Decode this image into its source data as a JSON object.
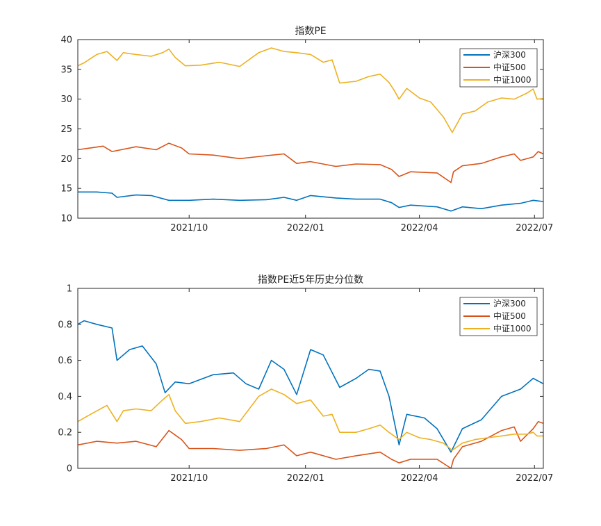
{
  "chart_data": [
    {
      "type": "line",
      "title": "指数PE",
      "xlabel": "",
      "ylabel": "",
      "xlim": [
        "2021-07-05",
        "2022-07-08"
      ],
      "ylim": [
        10,
        40
      ],
      "xticks": [
        {
          "date": "2021-10-01",
          "label": "2021/10"
        },
        {
          "date": "2022-01-01",
          "label": "2022/01"
        },
        {
          "date": "2022-04-01",
          "label": "2022/04"
        },
        {
          "date": "2022-07-01",
          "label": "2022/07"
        }
      ],
      "yticks": [
        {
          "value": 10,
          "label": "10"
        },
        {
          "value": 15,
          "label": "15"
        },
        {
          "value": 20,
          "label": "20"
        },
        {
          "value": 25,
          "label": "25"
        },
        {
          "value": 30,
          "label": "30"
        },
        {
          "value": 35,
          "label": "35"
        },
        {
          "value": 40,
          "label": "40"
        }
      ],
      "grid": false,
      "legend_position": "top-right",
      "series": [
        {
          "name": "沪深300",
          "color": "#0072BD",
          "points": [
            [
              "2021-07-05",
              14.4
            ],
            [
              "2021-07-20",
              14.4
            ],
            [
              "2021-08-01",
              14.2
            ],
            [
              "2021-08-05",
              13.5
            ],
            [
              "2021-08-20",
              13.9
            ],
            [
              "2021-09-01",
              13.8
            ],
            [
              "2021-09-15",
              13.0
            ],
            [
              "2021-10-01",
              13.0
            ],
            [
              "2021-10-20",
              13.2
            ],
            [
              "2021-11-10",
              13.0
            ],
            [
              "2021-12-01",
              13.1
            ],
            [
              "2021-12-15",
              13.5
            ],
            [
              "2021-12-25",
              13.0
            ],
            [
              "2022-01-05",
              13.8
            ],
            [
              "2022-01-25",
              13.4
            ],
            [
              "2022-02-10",
              13.2
            ],
            [
              "2022-03-01",
              13.2
            ],
            [
              "2022-03-10",
              12.6
            ],
            [
              "2022-03-16",
              11.8
            ],
            [
              "2022-03-25",
              12.2
            ],
            [
              "2022-04-15",
              11.9
            ],
            [
              "2022-04-26",
              11.2
            ],
            [
              "2022-05-05",
              11.9
            ],
            [
              "2022-05-20",
              11.6
            ],
            [
              "2022-06-05",
              12.2
            ],
            [
              "2022-06-20",
              12.5
            ],
            [
              "2022-06-30",
              13.0
            ],
            [
              "2022-07-08",
              12.8
            ]
          ]
        },
        {
          "name": "中证500",
          "color": "#D95319",
          "points": [
            [
              "2021-07-05",
              21.5
            ],
            [
              "2021-07-15",
              21.8
            ],
            [
              "2021-07-25",
              22.1
            ],
            [
              "2021-08-01",
              21.2
            ],
            [
              "2021-08-20",
              22.0
            ],
            [
              "2021-09-05",
              21.5
            ],
            [
              "2021-09-15",
              22.6
            ],
            [
              "2021-09-25",
              21.8
            ],
            [
              "2021-10-01",
              20.8
            ],
            [
              "2021-10-20",
              20.6
            ],
            [
              "2021-11-10",
              20.0
            ],
            [
              "2021-12-01",
              20.5
            ],
            [
              "2021-12-15",
              20.8
            ],
            [
              "2021-12-25",
              19.2
            ],
            [
              "2022-01-05",
              19.5
            ],
            [
              "2022-01-25",
              18.7
            ],
            [
              "2022-02-10",
              19.1
            ],
            [
              "2022-03-01",
              19.0
            ],
            [
              "2022-03-10",
              18.2
            ],
            [
              "2022-03-16",
              17.0
            ],
            [
              "2022-03-25",
              17.8
            ],
            [
              "2022-04-15",
              17.6
            ],
            [
              "2022-04-26",
              16.0
            ],
            [
              "2022-04-28",
              17.8
            ],
            [
              "2022-05-05",
              18.8
            ],
            [
              "2022-05-20",
              19.2
            ],
            [
              "2022-06-05",
              20.3
            ],
            [
              "2022-06-15",
              20.8
            ],
            [
              "2022-06-20",
              19.7
            ],
            [
              "2022-06-30",
              20.3
            ],
            [
              "2022-07-04",
              21.2
            ],
            [
              "2022-07-08",
              20.8
            ]
          ]
        },
        {
          "name": "中证1000",
          "color": "#EDB120",
          "points": [
            [
              "2021-07-05",
              35.6
            ],
            [
              "2021-07-10",
              36.1
            ],
            [
              "2021-07-20",
              37.5
            ],
            [
              "2021-07-28",
              38.0
            ],
            [
              "2021-08-05",
              36.5
            ],
            [
              "2021-08-10",
              37.8
            ],
            [
              "2021-08-20",
              37.5
            ],
            [
              "2021-09-01",
              37.2
            ],
            [
              "2021-09-10",
              37.8
            ],
            [
              "2021-09-15",
              38.4
            ],
            [
              "2021-09-20",
              37.0
            ],
            [
              "2021-09-28",
              35.6
            ],
            [
              "2021-10-10",
              35.7
            ],
            [
              "2021-10-25",
              36.2
            ],
            [
              "2021-11-10",
              35.5
            ],
            [
              "2021-11-25",
              37.8
            ],
            [
              "2021-12-05",
              38.6
            ],
            [
              "2021-12-15",
              38.0
            ],
            [
              "2021-12-25",
              37.8
            ],
            [
              "2022-01-05",
              37.5
            ],
            [
              "2022-01-15",
              36.2
            ],
            [
              "2022-01-22",
              36.6
            ],
            [
              "2022-01-28",
              32.7
            ],
            [
              "2022-02-10",
              33.0
            ],
            [
              "2022-02-20",
              33.8
            ],
            [
              "2022-03-01",
              34.2
            ],
            [
              "2022-03-08",
              32.8
            ],
            [
              "2022-03-12",
              31.5
            ],
            [
              "2022-03-16",
              30.0
            ],
            [
              "2022-03-22",
              31.8
            ],
            [
              "2022-04-01",
              30.2
            ],
            [
              "2022-04-10",
              29.5
            ],
            [
              "2022-04-20",
              27.0
            ],
            [
              "2022-04-27",
              24.4
            ],
            [
              "2022-05-05",
              27.5
            ],
            [
              "2022-05-15",
              28.0
            ],
            [
              "2022-05-25",
              29.5
            ],
            [
              "2022-06-05",
              30.2
            ],
            [
              "2022-06-15",
              30.0
            ],
            [
              "2022-06-25",
              31.0
            ],
            [
              "2022-06-30",
              31.7
            ],
            [
              "2022-07-03",
              30.0
            ],
            [
              "2022-07-08",
              30.1
            ]
          ]
        }
      ]
    },
    {
      "type": "line",
      "title": "指数PE近5年历史分位数",
      "xlabel": "",
      "ylabel": "",
      "xlim": [
        "2021-07-05",
        "2022-07-08"
      ],
      "ylim": [
        0,
        1
      ],
      "xticks": [
        {
          "date": "2021-10-01",
          "label": "2021/10"
        },
        {
          "date": "2022-01-01",
          "label": "2022/01"
        },
        {
          "date": "2022-04-01",
          "label": "2022/04"
        },
        {
          "date": "2022-07-01",
          "label": "2022/07"
        }
      ],
      "yticks": [
        {
          "value": 0,
          "label": "0"
        },
        {
          "value": 0.2,
          "label": "0.2"
        },
        {
          "value": 0.4,
          "label": "0.4"
        },
        {
          "value": 0.6,
          "label": "0.6"
        },
        {
          "value": 0.8,
          "label": "0.8"
        },
        {
          "value": 1,
          "label": "1"
        }
      ],
      "grid": false,
      "legend_position": "top-right",
      "series": [
        {
          "name": "沪深300",
          "color": "#0072BD",
          "points": [
            [
              "2021-07-05",
              0.8
            ],
            [
              "2021-07-10",
              0.82
            ],
            [
              "2021-07-20",
              0.8
            ],
            [
              "2021-08-01",
              0.78
            ],
            [
              "2021-08-05",
              0.6
            ],
            [
              "2021-08-15",
              0.66
            ],
            [
              "2021-08-25",
              0.68
            ],
            [
              "2021-09-05",
              0.58
            ],
            [
              "2021-09-12",
              0.42
            ],
            [
              "2021-09-20",
              0.48
            ],
            [
              "2021-10-01",
              0.47
            ],
            [
              "2021-10-20",
              0.52
            ],
            [
              "2021-11-05",
              0.53
            ],
            [
              "2021-11-15",
              0.47
            ],
            [
              "2021-11-25",
              0.44
            ],
            [
              "2021-12-05",
              0.6
            ],
            [
              "2021-12-15",
              0.55
            ],
            [
              "2021-12-25",
              0.41
            ],
            [
              "2022-01-05",
              0.66
            ],
            [
              "2022-01-15",
              0.63
            ],
            [
              "2022-01-28",
              0.45
            ],
            [
              "2022-02-10",
              0.5
            ],
            [
              "2022-02-20",
              0.55
            ],
            [
              "2022-03-01",
              0.54
            ],
            [
              "2022-03-08",
              0.4
            ],
            [
              "2022-03-16",
              0.13
            ],
            [
              "2022-03-22",
              0.3
            ],
            [
              "2022-04-05",
              0.28
            ],
            [
              "2022-04-15",
              0.22
            ],
            [
              "2022-04-26",
              0.09
            ],
            [
              "2022-05-05",
              0.22
            ],
            [
              "2022-05-20",
              0.27
            ],
            [
              "2022-06-05",
              0.4
            ],
            [
              "2022-06-20",
              0.44
            ],
            [
              "2022-06-30",
              0.5
            ],
            [
              "2022-07-08",
              0.47
            ]
          ]
        },
        {
          "name": "中证500",
          "color": "#D95319",
          "points": [
            [
              "2021-07-05",
              0.13
            ],
            [
              "2021-07-20",
              0.15
            ],
            [
              "2021-08-05",
              0.14
            ],
            [
              "2021-08-20",
              0.15
            ],
            [
              "2021-09-05",
              0.12
            ],
            [
              "2021-09-15",
              0.21
            ],
            [
              "2021-09-25",
              0.16
            ],
            [
              "2021-10-01",
              0.11
            ],
            [
              "2021-10-20",
              0.11
            ],
            [
              "2021-11-10",
              0.1
            ],
            [
              "2021-12-01",
              0.11
            ],
            [
              "2021-12-15",
              0.13
            ],
            [
              "2021-12-25",
              0.07
            ],
            [
              "2022-01-05",
              0.09
            ],
            [
              "2022-01-25",
              0.05
            ],
            [
              "2022-02-10",
              0.07
            ],
            [
              "2022-03-01",
              0.09
            ],
            [
              "2022-03-10",
              0.05
            ],
            [
              "2022-03-16",
              0.03
            ],
            [
              "2022-03-25",
              0.05
            ],
            [
              "2022-04-15",
              0.05
            ],
            [
              "2022-04-26",
              0.0
            ],
            [
              "2022-04-28",
              0.05
            ],
            [
              "2022-05-05",
              0.12
            ],
            [
              "2022-05-20",
              0.15
            ],
            [
              "2022-06-05",
              0.21
            ],
            [
              "2022-06-15",
              0.23
            ],
            [
              "2022-06-20",
              0.15
            ],
            [
              "2022-06-30",
              0.22
            ],
            [
              "2022-07-04",
              0.26
            ],
            [
              "2022-07-08",
              0.25
            ]
          ]
        },
        {
          "name": "中证1000",
          "color": "#EDB120",
          "points": [
            [
              "2021-07-05",
              0.26
            ],
            [
              "2021-07-15",
              0.3
            ],
            [
              "2021-07-28",
              0.35
            ],
            [
              "2021-08-05",
              0.26
            ],
            [
              "2021-08-10",
              0.32
            ],
            [
              "2021-08-20",
              0.33
            ],
            [
              "2021-09-01",
              0.32
            ],
            [
              "2021-09-10",
              0.38
            ],
            [
              "2021-09-15",
              0.41
            ],
            [
              "2021-09-20",
              0.32
            ],
            [
              "2021-09-28",
              0.25
            ],
            [
              "2021-10-10",
              0.26
            ],
            [
              "2021-10-25",
              0.28
            ],
            [
              "2021-11-10",
              0.26
            ],
            [
              "2021-11-25",
              0.4
            ],
            [
              "2021-12-05",
              0.44
            ],
            [
              "2021-12-15",
              0.41
            ],
            [
              "2021-12-25",
              0.36
            ],
            [
              "2022-01-05",
              0.38
            ],
            [
              "2022-01-15",
              0.29
            ],
            [
              "2022-01-22",
              0.3
            ],
            [
              "2022-01-28",
              0.2
            ],
            [
              "2022-02-10",
              0.2
            ],
            [
              "2022-02-20",
              0.22
            ],
            [
              "2022-03-01",
              0.24
            ],
            [
              "2022-03-08",
              0.2
            ],
            [
              "2022-03-16",
              0.16
            ],
            [
              "2022-03-22",
              0.2
            ],
            [
              "2022-04-01",
              0.17
            ],
            [
              "2022-04-10",
              0.16
            ],
            [
              "2022-04-20",
              0.14
            ],
            [
              "2022-04-27",
              0.1
            ],
            [
              "2022-05-05",
              0.14
            ],
            [
              "2022-05-15",
              0.16
            ],
            [
              "2022-05-25",
              0.17
            ],
            [
              "2022-06-05",
              0.18
            ],
            [
              "2022-06-15",
              0.19
            ],
            [
              "2022-06-25",
              0.19
            ],
            [
              "2022-06-30",
              0.2
            ],
            [
              "2022-07-03",
              0.18
            ],
            [
              "2022-07-08",
              0.18
            ]
          ]
        }
      ]
    }
  ]
}
